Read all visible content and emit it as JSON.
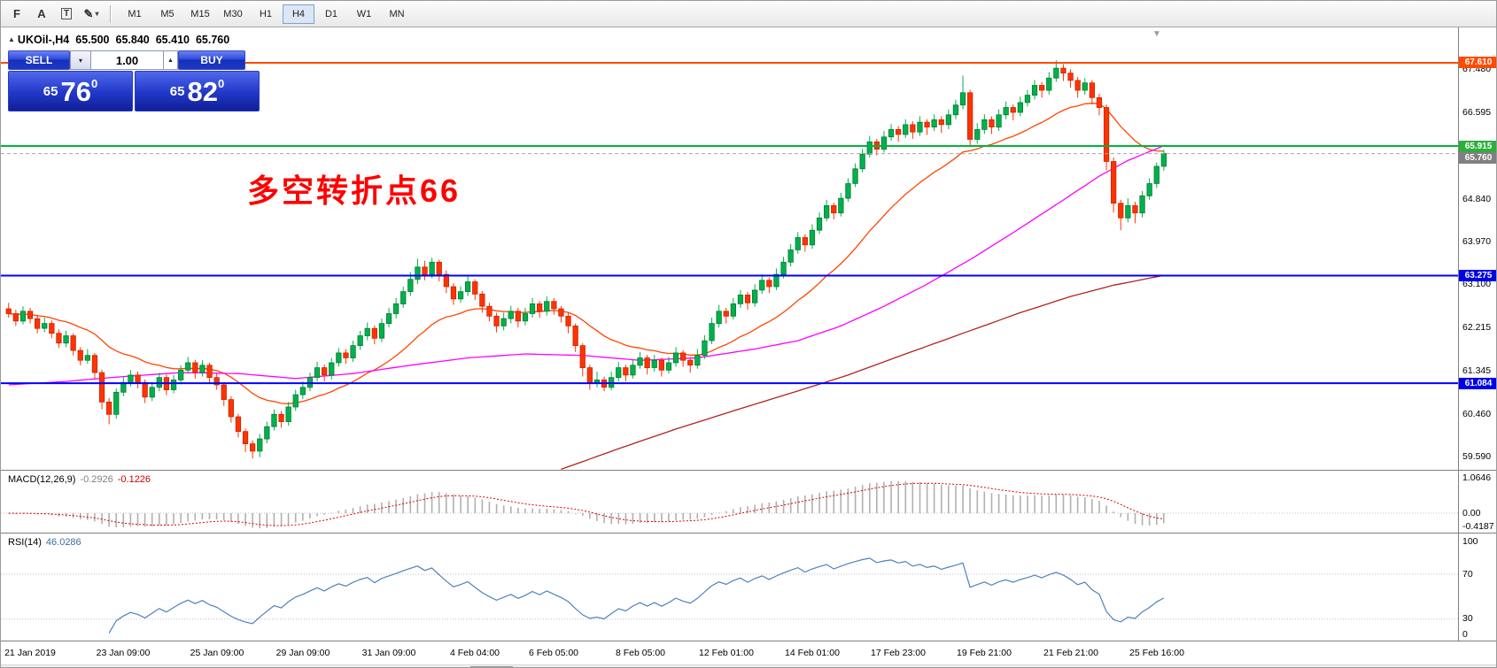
{
  "toolbar": {
    "tools": [
      {
        "name": "fibonacci-tool",
        "glyph": "F",
        "boxed": false,
        "has_dropdown": false
      },
      {
        "name": "text-tool",
        "glyph": "A",
        "boxed": false,
        "has_dropdown": false
      },
      {
        "name": "text-label-tool",
        "glyph": "T",
        "boxed": true,
        "has_dropdown": false
      },
      {
        "name": "arrows-tool",
        "glyph": "✎",
        "boxed": false,
        "has_dropdown": true
      }
    ],
    "timeframes": [
      "M1",
      "M5",
      "M15",
      "M30",
      "H1",
      "H4",
      "D1",
      "W1",
      "MN"
    ],
    "active_timeframe": "H4"
  },
  "symbol_header": {
    "marker": "▲",
    "symbol": "UKOil-,H4",
    "open": "65.500",
    "high": "65.840",
    "low": "65.410",
    "close": "65.760"
  },
  "one_click": {
    "sell_label": "SELL",
    "buy_label": "BUY",
    "lot_value": "1.00",
    "dropdown_glyph": "▾",
    "spinner_glyph": "▲",
    "sell_price": {
      "base": "65",
      "big": "76",
      "sup": "0"
    },
    "buy_price": {
      "base": "65",
      "big": "82",
      "sup": "0"
    }
  },
  "annotation": {
    "text": "多空转折点66",
    "color": "#ff0000"
  },
  "shift_marker_glyph": "▼",
  "colors": {
    "one_click_blue": "#2137c8",
    "up_candle": "#00b050",
    "down_candle": "#ff3300",
    "active_timeframe_border": "#7da2ce"
  },
  "macd": {
    "name": "MACD(12,26,9)",
    "value_main": "-0.2926",
    "value_signal": "-0.1226",
    "fast": 12,
    "slow": 26,
    "signal": 9,
    "axis": [
      {
        "label": "1.0646",
        "value": 1.0646
      },
      {
        "label": "0.00",
        "value": 0
      },
      {
        "label": "-0.4187",
        "value": -0.4187
      }
    ],
    "histogram_color": "#b0b0b0",
    "signal_color": "#dd0000"
  },
  "rsi": {
    "name": "RSI(14)",
    "value": "46.0286",
    "period": 14,
    "axis": [
      {
        "label": "100",
        "value": 100
      },
      {
        "label": "70",
        "value": 70
      },
      {
        "label": "30",
        "value": 30
      },
      {
        "label": "0",
        "value": 0
      }
    ],
    "level_lines": [
      70,
      30
    ],
    "color": "#4f81bd"
  },
  "chart_data": {
    "type": "candlestick",
    "symbol": "UKOil-",
    "timeframe": "H4",
    "visible_price_top": 68.33,
    "visible_price_bottom": 59.32,
    "up_color": "#00b050",
    "down_color": "#ff3300",
    "price_ticks": [
      {
        "label": "67.480",
        "value": 67.48
      },
      {
        "label": "66.595",
        "value": 66.595
      },
      {
        "label": "64.840",
        "value": 64.84
      },
      {
        "label": "63.970",
        "value": 63.97
      },
      {
        "label": "63.100",
        "value": 63.1
      },
      {
        "label": "62.215",
        "value": 62.215
      },
      {
        "label": "61.345",
        "value": 61.345
      },
      {
        "label": "60.460",
        "value": 60.46
      },
      {
        "label": "59.590",
        "value": 59.59
      }
    ],
    "levels": [
      {
        "label": "67.610",
        "value": 67.61,
        "color": "#ff4a00",
        "tag_color": "#ff4a00",
        "style": "solid",
        "width": 2
      },
      {
        "label": "65.915",
        "value": 65.915,
        "color": "#00b33c",
        "tag_color": "#2eae3c",
        "style": "solid",
        "width": 2
      },
      {
        "label": "65.760",
        "value": 65.76,
        "color": "#a6a6a6",
        "tag_color": "#808080",
        "style": "dashed",
        "width": 1
      },
      {
        "label": "63.275",
        "value": 63.275,
        "color": "#0000ff",
        "tag_color": "#0000e6",
        "style": "solid",
        "width": 2
      },
      {
        "label": "61.084",
        "value": 61.084,
        "color": "#0000ff",
        "tag_color": "#0000e6",
        "style": "solid",
        "width": 2
      }
    ],
    "moving_averages": [
      {
        "name": "fast",
        "type": "ema",
        "period": 21,
        "color": "#ff4500"
      },
      {
        "name": "mid",
        "type": "points",
        "color": "#ff00ff",
        "points": [
          [
            0,
            61.05
          ],
          [
            8,
            61.12
          ],
          [
            16,
            61.22
          ],
          [
            24,
            61.3
          ],
          [
            32,
            61.28
          ],
          [
            40,
            61.18
          ],
          [
            48,
            61.28
          ],
          [
            56,
            61.45
          ],
          [
            64,
            61.6
          ],
          [
            72,
            61.68
          ],
          [
            80,
            61.65
          ],
          [
            88,
            61.55
          ],
          [
            96,
            61.6
          ],
          [
            104,
            61.78
          ],
          [
            110,
            61.95
          ],
          [
            116,
            62.25
          ],
          [
            122,
            62.65
          ],
          [
            128,
            63.1
          ],
          [
            134,
            63.6
          ],
          [
            140,
            64.15
          ],
          [
            146,
            64.72
          ],
          [
            152,
            65.3
          ],
          [
            156,
            65.62
          ],
          [
            161,
            65.92
          ]
        ]
      },
      {
        "name": "slow",
        "type": "points",
        "color": "#b22222",
        "points": [
          [
            77,
            59.33
          ],
          [
            85,
            59.75
          ],
          [
            93,
            60.15
          ],
          [
            101,
            60.52
          ],
          [
            109,
            60.88
          ],
          [
            117,
            61.25
          ],
          [
            125,
            61.68
          ],
          [
            133,
            62.1
          ],
          [
            141,
            62.52
          ],
          [
            148,
            62.85
          ],
          [
            154,
            63.08
          ],
          [
            161,
            63.28
          ]
        ]
      }
    ],
    "time_labels": [
      {
        "label": "21 Jan 2019",
        "idx": 3
      },
      {
        "label": "23 Jan 09:00",
        "idx": 16
      },
      {
        "label": "25 Jan 09:00",
        "idx": 29
      },
      {
        "label": "29 Jan 09:00",
        "idx": 41
      },
      {
        "label": "31 Jan 09:00",
        "idx": 53
      },
      {
        "label": "4 Feb 04:00",
        "idx": 65
      },
      {
        "label": "6 Feb 05:00",
        "idx": 76
      },
      {
        "label": "8 Feb 05:00",
        "idx": 88
      },
      {
        "label": "12 Feb 01:00",
        "idx": 100
      },
      {
        "label": "14 Feb 01:00",
        "idx": 112
      },
      {
        "label": "17 Feb 23:00",
        "idx": 124
      },
      {
        "label": "19 Feb 21:00",
        "idx": 136
      },
      {
        "label": "21 Feb 21:00",
        "idx": 148
      },
      {
        "label": "25 Feb 16:00",
        "idx": 160
      }
    ],
    "candles": [
      [
        62.6,
        62.72,
        62.42,
        62.5
      ],
      [
        62.5,
        62.58,
        62.25,
        62.35
      ],
      [
        62.35,
        62.65,
        62.28,
        62.55
      ],
      [
        62.55,
        62.62,
        62.3,
        62.4
      ],
      [
        62.4,
        62.48,
        62.1,
        62.2
      ],
      [
        62.2,
        62.42,
        62.12,
        62.3
      ],
      [
        62.3,
        62.36,
        62.0,
        62.1
      ],
      [
        62.1,
        62.18,
        61.8,
        61.9
      ],
      [
        61.9,
        62.15,
        61.82,
        62.05
      ],
      [
        62.05,
        62.1,
        61.65,
        61.75
      ],
      [
        61.75,
        61.82,
        61.45,
        61.55
      ],
      [
        61.55,
        61.78,
        61.48,
        61.65
      ],
      [
        61.65,
        61.7,
        61.18,
        61.3
      ],
      [
        61.3,
        61.36,
        60.55,
        60.7
      ],
      [
        60.7,
        60.78,
        60.25,
        60.45
      ],
      [
        60.45,
        60.98,
        60.36,
        60.9
      ],
      [
        60.9,
        61.22,
        60.82,
        61.1
      ],
      [
        61.1,
        61.35,
        61.02,
        61.25
      ],
      [
        61.25,
        61.32,
        60.98,
        61.1
      ],
      [
        61.1,
        61.16,
        60.68,
        60.8
      ],
      [
        60.8,
        61.1,
        60.72,
        61.0
      ],
      [
        61.0,
        61.3,
        60.92,
        61.2
      ],
      [
        61.2,
        61.26,
        60.84,
        60.95
      ],
      [
        60.95,
        61.25,
        60.88,
        61.15
      ],
      [
        61.15,
        61.45,
        61.06,
        61.35
      ],
      [
        61.35,
        61.62,
        61.28,
        61.5
      ],
      [
        61.5,
        61.56,
        61.18,
        61.3
      ],
      [
        61.3,
        61.55,
        61.22,
        61.45
      ],
      [
        61.45,
        61.5,
        61.08,
        61.2
      ],
      [
        61.2,
        61.28,
        60.95,
        61.05
      ],
      [
        61.05,
        61.1,
        60.62,
        60.75
      ],
      [
        60.75,
        60.82,
        60.28,
        60.4
      ],
      [
        60.4,
        60.46,
        59.98,
        60.1
      ],
      [
        60.1,
        60.16,
        59.68,
        59.85
      ],
      [
        59.85,
        59.92,
        59.55,
        59.7
      ],
      [
        59.7,
        60.05,
        59.58,
        59.95
      ],
      [
        59.95,
        60.3,
        59.86,
        60.2
      ],
      [
        60.2,
        60.55,
        60.12,
        60.45
      ],
      [
        60.45,
        60.52,
        60.18,
        60.3
      ],
      [
        60.3,
        60.7,
        60.22,
        60.6
      ],
      [
        60.6,
        60.95,
        60.52,
        60.85
      ],
      [
        60.85,
        61.12,
        60.76,
        61.0
      ],
      [
        61.0,
        61.3,
        60.92,
        61.2
      ],
      [
        61.2,
        61.52,
        61.12,
        61.4
      ],
      [
        61.4,
        61.46,
        61.12,
        61.25
      ],
      [
        61.25,
        61.6,
        61.16,
        61.5
      ],
      [
        61.5,
        61.8,
        61.42,
        61.7
      ],
      [
        61.7,
        61.78,
        61.48,
        61.6
      ],
      [
        61.6,
        61.95,
        61.52,
        61.85
      ],
      [
        61.85,
        62.15,
        61.76,
        62.05
      ],
      [
        62.05,
        62.32,
        61.96,
        62.2
      ],
      [
        62.2,
        62.26,
        61.88,
        62.0
      ],
      [
        62.0,
        62.4,
        61.92,
        62.3
      ],
      [
        62.3,
        62.62,
        62.22,
        62.5
      ],
      [
        62.5,
        62.82,
        62.4,
        62.7
      ],
      [
        62.7,
        63.05,
        62.62,
        62.95
      ],
      [
        62.95,
        63.35,
        62.86,
        63.2
      ],
      [
        63.2,
        63.62,
        63.1,
        63.45
      ],
      [
        63.45,
        63.58,
        63.18,
        63.3
      ],
      [
        63.3,
        63.64,
        63.22,
        63.55
      ],
      [
        63.55,
        63.6,
        63.16,
        63.3
      ],
      [
        63.3,
        63.38,
        62.92,
        63.05
      ],
      [
        63.05,
        63.12,
        62.68,
        62.8
      ],
      [
        62.8,
        63.06,
        62.72,
        62.95
      ],
      [
        62.95,
        63.28,
        62.86,
        63.15
      ],
      [
        63.15,
        63.2,
        62.78,
        62.9
      ],
      [
        62.9,
        62.96,
        62.52,
        62.65
      ],
      [
        62.65,
        62.72,
        62.34,
        62.45
      ],
      [
        62.45,
        62.52,
        62.12,
        62.25
      ],
      [
        62.25,
        62.52,
        62.16,
        62.4
      ],
      [
        62.4,
        62.66,
        62.3,
        62.55
      ],
      [
        62.55,
        62.62,
        62.22,
        62.35
      ],
      [
        62.35,
        62.62,
        62.26,
        62.5
      ],
      [
        62.5,
        62.82,
        62.42,
        62.7
      ],
      [
        62.7,
        62.76,
        62.42,
        62.55
      ],
      [
        62.55,
        62.85,
        62.46,
        62.75
      ],
      [
        62.75,
        62.82,
        62.48,
        62.6
      ],
      [
        62.6,
        62.66,
        62.32,
        62.45
      ],
      [
        62.45,
        62.52,
        62.1,
        62.25
      ],
      [
        62.25,
        62.3,
        61.72,
        61.85
      ],
      [
        61.85,
        61.9,
        61.22,
        61.4
      ],
      [
        61.4,
        61.46,
        60.95,
        61.1
      ],
      [
        61.1,
        61.32,
        61.0,
        61.15
      ],
      [
        61.15,
        61.22,
        60.92,
        61.0
      ],
      [
        61.0,
        61.32,
        60.94,
        61.2
      ],
      [
        61.2,
        61.52,
        61.12,
        61.4
      ],
      [
        61.4,
        61.46,
        61.12,
        61.25
      ],
      [
        61.25,
        61.55,
        61.18,
        61.45
      ],
      [
        61.45,
        61.72,
        61.38,
        61.6
      ],
      [
        61.6,
        61.66,
        61.26,
        61.4
      ],
      [
        61.4,
        61.66,
        61.32,
        61.55
      ],
      [
        61.55,
        61.6,
        61.22,
        61.35
      ],
      [
        61.35,
        61.62,
        61.28,
        61.5
      ],
      [
        61.5,
        61.82,
        61.42,
        61.7
      ],
      [
        61.7,
        61.76,
        61.42,
        61.55
      ],
      [
        61.55,
        61.62,
        61.3,
        61.45
      ],
      [
        61.45,
        61.78,
        61.38,
        61.65
      ],
      [
        61.65,
        62.06,
        61.58,
        61.95
      ],
      [
        61.95,
        62.42,
        61.88,
        62.3
      ],
      [
        62.3,
        62.68,
        62.22,
        62.55
      ],
      [
        62.55,
        62.62,
        62.3,
        62.45
      ],
      [
        62.45,
        62.82,
        62.38,
        62.7
      ],
      [
        62.7,
        62.98,
        62.62,
        62.88
      ],
      [
        62.88,
        62.94,
        62.58,
        62.72
      ],
      [
        62.72,
        63.1,
        62.64,
        62.98
      ],
      [
        62.98,
        63.3,
        62.9,
        63.18
      ],
      [
        63.18,
        63.24,
        62.92,
        63.05
      ],
      [
        63.05,
        63.42,
        62.98,
        63.3
      ],
      [
        63.3,
        63.66,
        63.22,
        63.55
      ],
      [
        63.55,
        63.92,
        63.46,
        63.8
      ],
      [
        63.8,
        64.16,
        63.72,
        64.05
      ],
      [
        64.05,
        64.12,
        63.76,
        63.9
      ],
      [
        63.9,
        64.32,
        63.82,
        64.2
      ],
      [
        64.2,
        64.56,
        64.12,
        64.45
      ],
      [
        64.45,
        64.82,
        64.38,
        64.7
      ],
      [
        64.7,
        64.76,
        64.42,
        64.55
      ],
      [
        64.55,
        64.96,
        64.48,
        64.85
      ],
      [
        64.85,
        65.26,
        64.78,
        65.15
      ],
      [
        65.15,
        65.56,
        65.08,
        65.45
      ],
      [
        65.45,
        65.86,
        65.38,
        65.75
      ],
      [
        65.75,
        66.12,
        65.68,
        66.0
      ],
      [
        66.0,
        66.06,
        65.72,
        65.85
      ],
      [
        65.85,
        66.22,
        65.78,
        66.1
      ],
      [
        66.1,
        66.36,
        66.02,
        66.25
      ],
      [
        66.25,
        66.32,
        66.0,
        66.15
      ],
      [
        66.15,
        66.46,
        66.08,
        66.35
      ],
      [
        66.35,
        66.42,
        66.06,
        66.2
      ],
      [
        66.2,
        66.52,
        66.12,
        66.4
      ],
      [
        66.4,
        66.46,
        66.14,
        66.3
      ],
      [
        66.3,
        66.56,
        66.22,
        66.45
      ],
      [
        66.45,
        66.52,
        66.18,
        66.35
      ],
      [
        66.35,
        66.66,
        66.26,
        66.55
      ],
      [
        66.55,
        66.86,
        66.46,
        66.75
      ],
      [
        66.75,
        67.35,
        66.66,
        67.0
      ],
      [
        67.0,
        67.06,
        65.9,
        66.05
      ],
      [
        66.05,
        66.38,
        65.96,
        66.25
      ],
      [
        66.25,
        66.56,
        66.16,
        66.45
      ],
      [
        66.45,
        66.52,
        66.16,
        66.3
      ],
      [
        66.3,
        66.66,
        66.22,
        66.55
      ],
      [
        66.55,
        66.82,
        66.46,
        66.7
      ],
      [
        66.7,
        66.76,
        66.44,
        66.6
      ],
      [
        66.6,
        66.92,
        66.52,
        66.8
      ],
      [
        66.8,
        67.06,
        66.72,
        66.95
      ],
      [
        66.95,
        67.26,
        66.86,
        67.15
      ],
      [
        67.15,
        67.22,
        66.9,
        67.05
      ],
      [
        67.05,
        67.42,
        66.96,
        67.3
      ],
      [
        67.3,
        67.66,
        67.22,
        67.5
      ],
      [
        67.5,
        67.58,
        67.24,
        67.4
      ],
      [
        67.4,
        67.48,
        67.1,
        67.25
      ],
      [
        67.25,
        67.32,
        66.9,
        67.05
      ],
      [
        67.05,
        67.3,
        66.96,
        67.2
      ],
      [
        67.2,
        67.26,
        66.76,
        66.9
      ],
      [
        66.9,
        66.98,
        66.54,
        66.7
      ],
      [
        66.7,
        66.76,
        65.42,
        65.6
      ],
      [
        65.6,
        65.68,
        64.56,
        64.75
      ],
      [
        64.75,
        64.82,
        64.2,
        64.45
      ],
      [
        64.45,
        64.85,
        64.36,
        64.7
      ],
      [
        64.7,
        64.78,
        64.34,
        64.55
      ],
      [
        64.55,
        65.0,
        64.46,
        64.9
      ],
      [
        64.9,
        65.26,
        64.82,
        65.15
      ],
      [
        65.15,
        65.58,
        65.06,
        65.5
      ],
      [
        65.5,
        65.84,
        65.41,
        65.76
      ]
    ]
  }
}
